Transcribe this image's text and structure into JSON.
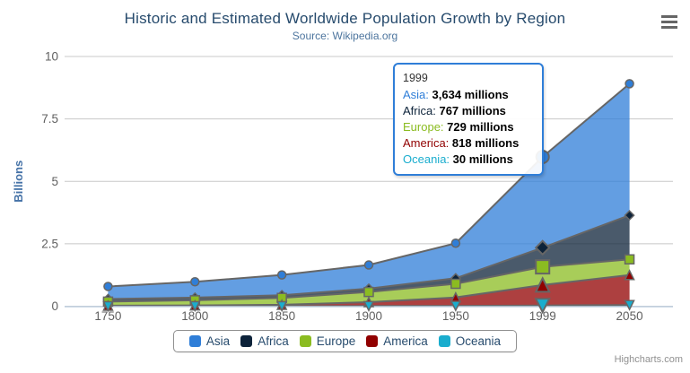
{
  "header": {
    "title": "Historic and Estimated Worldwide Population Growth by Region",
    "subtitle": "Source: Wikipedia.org"
  },
  "menu": {
    "icon": "hamburger-icon"
  },
  "chart_data": {
    "type": "area",
    "stacking": "normal",
    "categories": [
      "1750",
      "1800",
      "1850",
      "1900",
      "1950",
      "1999",
      "2050"
    ],
    "series": [
      {
        "name": "Asia",
        "color": "#2f7ed8",
        "marker": "circle",
        "values_millions": [
          502,
          635,
          809,
          947,
          1402,
          3634,
          5268
        ]
      },
      {
        "name": "Africa",
        "color": "#0d233a",
        "marker": "diamond",
        "values_millions": [
          106,
          107,
          111,
          133,
          221,
          767,
          1766
        ]
      },
      {
        "name": "Europe",
        "color": "#8bbc21",
        "marker": "square",
        "values_millions": [
          163,
          203,
          276,
          408,
          547,
          729,
          628
        ]
      },
      {
        "name": "America",
        "color": "#910000",
        "marker": "triangle",
        "values_millions": [
          18,
          31,
          54,
          156,
          339,
          818,
          1201
        ]
      },
      {
        "name": "Oceania",
        "color": "#1aadce",
        "marker": "triangle-down",
        "values_millions": [
          2,
          2,
          2,
          6,
          13,
          30,
          46
        ]
      }
    ],
    "stack_order_bottom_to_top": [
      "Oceania",
      "America",
      "Europe",
      "Africa",
      "Asia"
    ],
    "ylabel": "Billions",
    "xlabel": "",
    "ylim_billions": [
      0,
      10
    ],
    "yticks": [
      {
        "value": 0,
        "label": "0"
      },
      {
        "value": 2.5,
        "label": "2.5"
      },
      {
        "value": 5,
        "label": "5"
      },
      {
        "value": 7.5,
        "label": "7.5"
      },
      {
        "value": 10,
        "label": "10"
      }
    ],
    "grid": "horizontal-only",
    "legend_position": "bottom-center",
    "hover_index": 5,
    "styles": {
      "line_color": "#666666",
      "fill_opacity": 0.75,
      "grid_color": "#c8c8c8",
      "axis_line_color": "#c0d0e0",
      "tick_label_color": "#606060",
      "ytitle_color": "#4572a7"
    }
  },
  "tooltip": {
    "x": "1999",
    "border_color": "#2f7ed8",
    "rows": [
      {
        "name": "Asia",
        "value": "3,634 millions",
        "color": "#2f7ed8"
      },
      {
        "name": "Africa",
        "value": "767 millions",
        "color": "#0d233a"
      },
      {
        "name": "Europe",
        "value": "729 millions",
        "color": "#8bbc21"
      },
      {
        "name": "America",
        "value": "818 millions",
        "color": "#910000"
      },
      {
        "name": "Oceania",
        "value": "30 millions",
        "color": "#1aadce"
      }
    ]
  },
  "legend": {
    "items": [
      {
        "label": "Asia",
        "color": "#2f7ed8"
      },
      {
        "label": "Africa",
        "color": "#0d233a"
      },
      {
        "label": "Europe",
        "color": "#8bbc21"
      },
      {
        "label": "America",
        "color": "#910000"
      },
      {
        "label": "Oceania",
        "color": "#1aadce"
      }
    ]
  },
  "credits": "Highcharts.com"
}
